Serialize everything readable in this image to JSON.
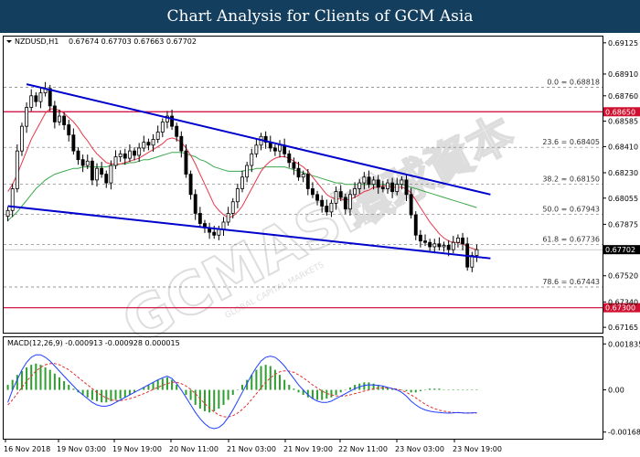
{
  "banner": {
    "title": "Chart Analysis for Clients of GCM Asia"
  },
  "watermark": {
    "brand": "GCMASIA",
    "brand_cjk": "環球資本",
    "tagline": "GLOBAL CAPITAL MARKETS"
  },
  "colors": {
    "banner_bg": "#143e5e",
    "trend_channel": "#0000cc",
    "sr_line": "#cc0033",
    "ma_fast": "#e8374b",
    "ma_slow": "#3aa84a",
    "macd_hist": "#2e9e2e",
    "macd_signal": "#e03030",
    "macd_line": "#1f3fff",
    "price_tag_bg": "#000000",
    "sr_tag_bg": "#d01030"
  },
  "chart_data": [
    {
      "type": "candlestick",
      "symbol": "NZDUSD,H1",
      "ohlc_header": "0.67674 0.67703 0.67663 0.67702",
      "current_price": "0.67702",
      "x_ticks": [
        "16 Nov 2018",
        "19 Nov 03:00",
        "19 Nov 19:00",
        "20 Nov 11:00",
        "21 Nov 03:00",
        "21 Nov 19:00",
        "22 Nov 11:00",
        "23 Nov 03:00",
        "23 Nov 19:00"
      ],
      "y_ticks": [
        "0.69125",
        "0.68910",
        "0.68760",
        "0.68650",
        "0.68585",
        "0.68410",
        "0.68230",
        "0.68055",
        "0.67875",
        "0.67702",
        "0.67520",
        "0.67340",
        "0.67300",
        "0.67165"
      ],
      "ylim": [
        0.67128,
        0.69168
      ],
      "closes": [
        0.6797,
        0.6812,
        0.6838,
        0.6855,
        0.6868,
        0.6876,
        0.6872,
        0.6878,
        0.6881,
        0.6869,
        0.6858,
        0.6862,
        0.6856,
        0.6849,
        0.6838,
        0.6832,
        0.6828,
        0.6831,
        0.6818,
        0.6826,
        0.6822,
        0.6816,
        0.6828,
        0.6834,
        0.6836,
        0.6833,
        0.6838,
        0.6835,
        0.684,
        0.6844,
        0.6842,
        0.6846,
        0.6851,
        0.6858,
        0.6862,
        0.6855,
        0.6848,
        0.6838,
        0.6822,
        0.6808,
        0.6795,
        0.6788,
        0.6785,
        0.6782,
        0.678,
        0.6784,
        0.6789,
        0.6795,
        0.6803,
        0.6812,
        0.682,
        0.6828,
        0.6836,
        0.6842,
        0.6848,
        0.6844,
        0.684,
        0.6838,
        0.6842,
        0.6836,
        0.683,
        0.6826,
        0.682,
        0.6822,
        0.6812,
        0.6808,
        0.6804,
        0.68,
        0.6796,
        0.6802,
        0.681,
        0.6806,
        0.6798,
        0.6808,
        0.6812,
        0.6816,
        0.682,
        0.6815,
        0.6818,
        0.6813,
        0.6812,
        0.6816,
        0.681,
        0.6815,
        0.6818,
        0.6808,
        0.6794,
        0.678,
        0.6776,
        0.6775,
        0.6772,
        0.6774,
        0.6772,
        0.6773,
        0.677,
        0.6775,
        0.6778,
        0.6774,
        0.6758,
        0.6766,
        0.677
      ],
      "ma_fast": [
        0.681,
        0.6815,
        0.6822,
        0.683,
        0.6838,
        0.6846,
        0.6852,
        0.6858,
        0.6864,
        0.6867,
        0.6867,
        0.6866,
        0.6864,
        0.6861,
        0.6858,
        0.6854,
        0.6849,
        0.6845,
        0.684,
        0.6836,
        0.6833,
        0.683,
        0.6829,
        0.6829,
        0.6829,
        0.683,
        0.6831,
        0.6832,
        0.6833,
        0.6835,
        0.6837,
        0.6839,
        0.6841,
        0.6843,
        0.6846,
        0.6847,
        0.6846,
        0.6844,
        0.684,
        0.6835,
        0.6829,
        0.6822,
        0.6815,
        0.6808,
        0.6801,
        0.6797,
        0.6794,
        0.6792,
        0.6793,
        0.6796,
        0.68,
        0.6806,
        0.6812,
        0.6818,
        0.6824,
        0.6828,
        0.6831,
        0.6833,
        0.6834,
        0.6834,
        0.6833,
        0.6831,
        0.6829,
        0.6827,
        0.6824,
        0.682,
        0.6816,
        0.6812,
        0.6808,
        0.6806,
        0.6805,
        0.6805,
        0.6804,
        0.6805,
        0.6806,
        0.6808,
        0.681,
        0.6811,
        0.6813,
        0.6813,
        0.6814,
        0.6814,
        0.6813,
        0.6813,
        0.6813,
        0.6812,
        0.6809,
        0.6804,
        0.6799,
        0.6794,
        0.6789,
        0.6785,
        0.6781,
        0.6778,
        0.6776,
        0.6775,
        0.6775,
        0.6774,
        0.6772,
        0.6771,
        0.677
      ],
      "ma_slow": [
        0.679,
        0.6793,
        0.6796,
        0.68,
        0.6804,
        0.6808,
        0.6812,
        0.6815,
        0.6818,
        0.682,
        0.6822,
        0.6823,
        0.6824,
        0.6825,
        0.6826,
        0.6826,
        0.6827,
        0.6827,
        0.6827,
        0.6827,
        0.6827,
        0.6827,
        0.6828,
        0.6828,
        0.6829,
        0.6829,
        0.683,
        0.683,
        0.6831,
        0.6832,
        0.6832,
        0.6833,
        0.6834,
        0.6835,
        0.6836,
        0.6837,
        0.6837,
        0.6837,
        0.6836,
        0.6835,
        0.6834,
        0.6832,
        0.6831,
        0.6829,
        0.6827,
        0.6826,
        0.6825,
        0.6824,
        0.6824,
        0.6824,
        0.6824,
        0.6825,
        0.6825,
        0.6826,
        0.6826,
        0.6827,
        0.6827,
        0.6827,
        0.6827,
        0.6827,
        0.6826,
        0.6825,
        0.6824,
        0.6823,
        0.6822,
        0.6821,
        0.682,
        0.6819,
        0.6818,
        0.6817,
        0.6816,
        0.6816,
        0.6815,
        0.6815,
        0.6815,
        0.6815,
        0.6815,
        0.6815,
        0.6815,
        0.6815,
        0.6815,
        0.6815,
        0.6815,
        0.6815,
        0.6815,
        0.6814,
        0.6813,
        0.6812,
        0.6811,
        0.681,
        0.6809,
        0.6808,
        0.6807,
        0.6806,
        0.6805,
        0.6804,
        0.6803,
        0.6802,
        0.6801,
        0.68,
        0.6799
      ],
      "fibonacci": [
        {
          "label": "0.0 = 0.68818",
          "price": 0.68818
        },
        {
          "label": "23.6 = 0.68405",
          "price": 0.68405
        },
        {
          "label": "38.2 = 0.68150",
          "price": 0.6815
        },
        {
          "label": "50.0 = 0.67943",
          "price": 0.67943
        },
        {
          "label": "61.8 = 0.67736",
          "price": 0.67736
        },
        {
          "label": "78.6 = 0.67443",
          "price": 0.67443
        }
      ],
      "support_resistance": [
        {
          "label": "0.68650",
          "price": 0.6865
        },
        {
          "label": "0.67300",
          "price": 0.673
        }
      ],
      "channel_upper": {
        "from": {
          "bar": 4,
          "price": 0.6884
        },
        "to": {
          "bar": 100,
          "price": 0.6808
        }
      },
      "channel_lower": {
        "from": {
          "bar": 0,
          "price": 0.68
        },
        "to": {
          "bar": 100,
          "price": 0.6764
        }
      }
    },
    {
      "type": "macd",
      "header": "MACD(12,26,9) -0.000913 -0.000928 0.000015",
      "y_ticks": [
        "0.001835",
        "0.00",
        "-0.001685"
      ],
      "ylim": [
        -0.00195,
        0.0021
      ],
      "histogram": [
        0.0002,
        0.0004,
        0.0006,
        0.00075,
        0.0009,
        0.001,
        0.00105,
        0.001,
        0.0009,
        0.0008,
        0.00065,
        0.0005,
        0.00035,
        0.0002,
        5e-05,
        -0.0001,
        -0.0002,
        -0.0003,
        -0.0004,
        -0.00045,
        -0.0005,
        -0.0005,
        -0.00045,
        -0.0004,
        -0.00035,
        -0.0003,
        -0.0002,
        -0.0001,
        0.0,
        0.0001,
        0.0002,
        0.0003,
        0.0004,
        0.00045,
        0.0005,
        0.0004,
        0.0002,
        0.0,
        -0.0002,
        -0.0004,
        -0.0006,
        -0.00075,
        -0.00085,
        -0.0009,
        -0.00085,
        -0.00075,
        -0.0006,
        -0.0004,
        -0.0002,
        0.0,
        0.0002,
        0.0004,
        0.0006,
        0.0008,
        0.00095,
        0.001,
        0.00095,
        0.0008,
        0.0006,
        0.0004,
        0.0002,
        5e-05,
        -0.0001,
        -0.0002,
        -0.0003,
        -0.00035,
        -0.0004,
        -0.0004,
        -0.00035,
        -0.0003,
        -0.0002,
        -0.0001,
        0.0,
        0.0001,
        0.0002,
        0.00025,
        0.0003,
        0.0003,
        0.00025,
        0.0002,
        0.00015,
        0.0001,
        5e-05,
        0.0,
        0.0,
        -5e-05,
        -0.0001,
        -0.0001,
        -5e-05,
        0.0,
        5e-05,
        5e-05,
        5e-05,
        0.0,
        0.0,
        2e-05,
        2e-05,
        0.0,
        1e-05,
        1e-05,
        2e-05
      ],
      "macd_line": [
        -0.0005,
        0.0,
        0.0004,
        0.0008,
        0.0011,
        0.0013,
        0.0014,
        0.0014,
        0.0013,
        0.00115,
        0.00095,
        0.00075,
        0.00055,
        0.00035,
        0.00015,
        -5e-05,
        -0.0002,
        -0.00035,
        -0.0005,
        -0.0006,
        -0.00065,
        -0.00065,
        -0.0006,
        -0.0005,
        -0.0004,
        -0.0003,
        -0.0002,
        -0.0001,
        0.0,
        0.0001,
        0.0002,
        0.0003,
        0.0004,
        0.00048,
        0.00055,
        0.00045,
        0.00025,
        0.0,
        -0.0003,
        -0.0006,
        -0.0009,
        -0.00115,
        -0.00135,
        -0.0015,
        -0.00155,
        -0.0015,
        -0.00135,
        -0.0011,
        -0.0008,
        -0.00045,
        -0.0001,
        0.00025,
        0.0006,
        0.0009,
        0.00115,
        0.0013,
        0.00135,
        0.0013,
        0.00115,
        0.00095,
        0.0007,
        0.00045,
        0.0002,
        0.0,
        -0.0002,
        -0.00035,
        -0.00045,
        -0.0005,
        -0.0005,
        -0.00045,
        -0.00035,
        -0.00025,
        -0.00015,
        -5e-05,
        5e-05,
        0.00012,
        0.00018,
        0.0002,
        0.0002,
        0.00018,
        0.00015,
        0.0001,
        5e-05,
        0.0,
        -0.0001,
        -0.00025,
        -0.00045,
        -0.0006,
        -0.00072,
        -0.0008,
        -0.00085,
        -0.00088,
        -0.0009,
        -0.00092,
        -0.00093,
        -0.00092,
        -0.0009,
        -0.00092,
        -0.00093,
        -0.00092,
        -0.00091
      ],
      "signal_line": [
        -0.0006,
        -0.0004,
        -0.00015,
        0.0001,
        0.00035,
        0.00055,
        0.00075,
        0.0009,
        0.001,
        0.00105,
        0.00105,
        0.001,
        0.0009,
        0.0008,
        0.00065,
        0.0005,
        0.00035,
        0.0002,
        5e-05,
        -0.0001,
        -0.00022,
        -0.00032,
        -0.0004,
        -0.00043,
        -0.00043,
        -0.0004,
        -0.00035,
        -0.0003,
        -0.00022,
        -0.00015,
        -7e-05,
        2e-05,
        0.0001,
        0.00018,
        0.00025,
        0.0003,
        0.0003,
        0.00025,
        0.00015,
        2e-05,
        -0.00015,
        -0.00035,
        -0.00055,
        -0.00072,
        -0.00088,
        -0.001,
        -0.00107,
        -0.00108,
        -0.00103,
        -0.00093,
        -0.00078,
        -0.0006,
        -0.00038,
        -0.00015,
        8e-05,
        0.0003,
        0.00048,
        0.00062,
        0.00072,
        0.00076,
        0.00075,
        0.0007,
        0.0006,
        0.00048,
        0.00035,
        0.0002,
        8e-05,
        -4e-05,
        -0.00014,
        -0.0002,
        -0.00024,
        -0.00025,
        -0.00024,
        -0.0002,
        -0.00015,
        -0.0001,
        -5e-05,
        0.0,
        4e-05,
        7e-05,
        8e-05,
        8e-05,
        6e-05,
        3e-05,
        -2e-05,
        -0.0001,
        -0.0002,
        -0.00032,
        -0.00045,
        -0.00057,
        -0.00067,
        -0.00075,
        -0.00081,
        -0.00085,
        -0.00088,
        -0.0009,
        -0.00091,
        -0.00092,
        -0.00092,
        -0.00092,
        -0.00093
      ]
    }
  ]
}
